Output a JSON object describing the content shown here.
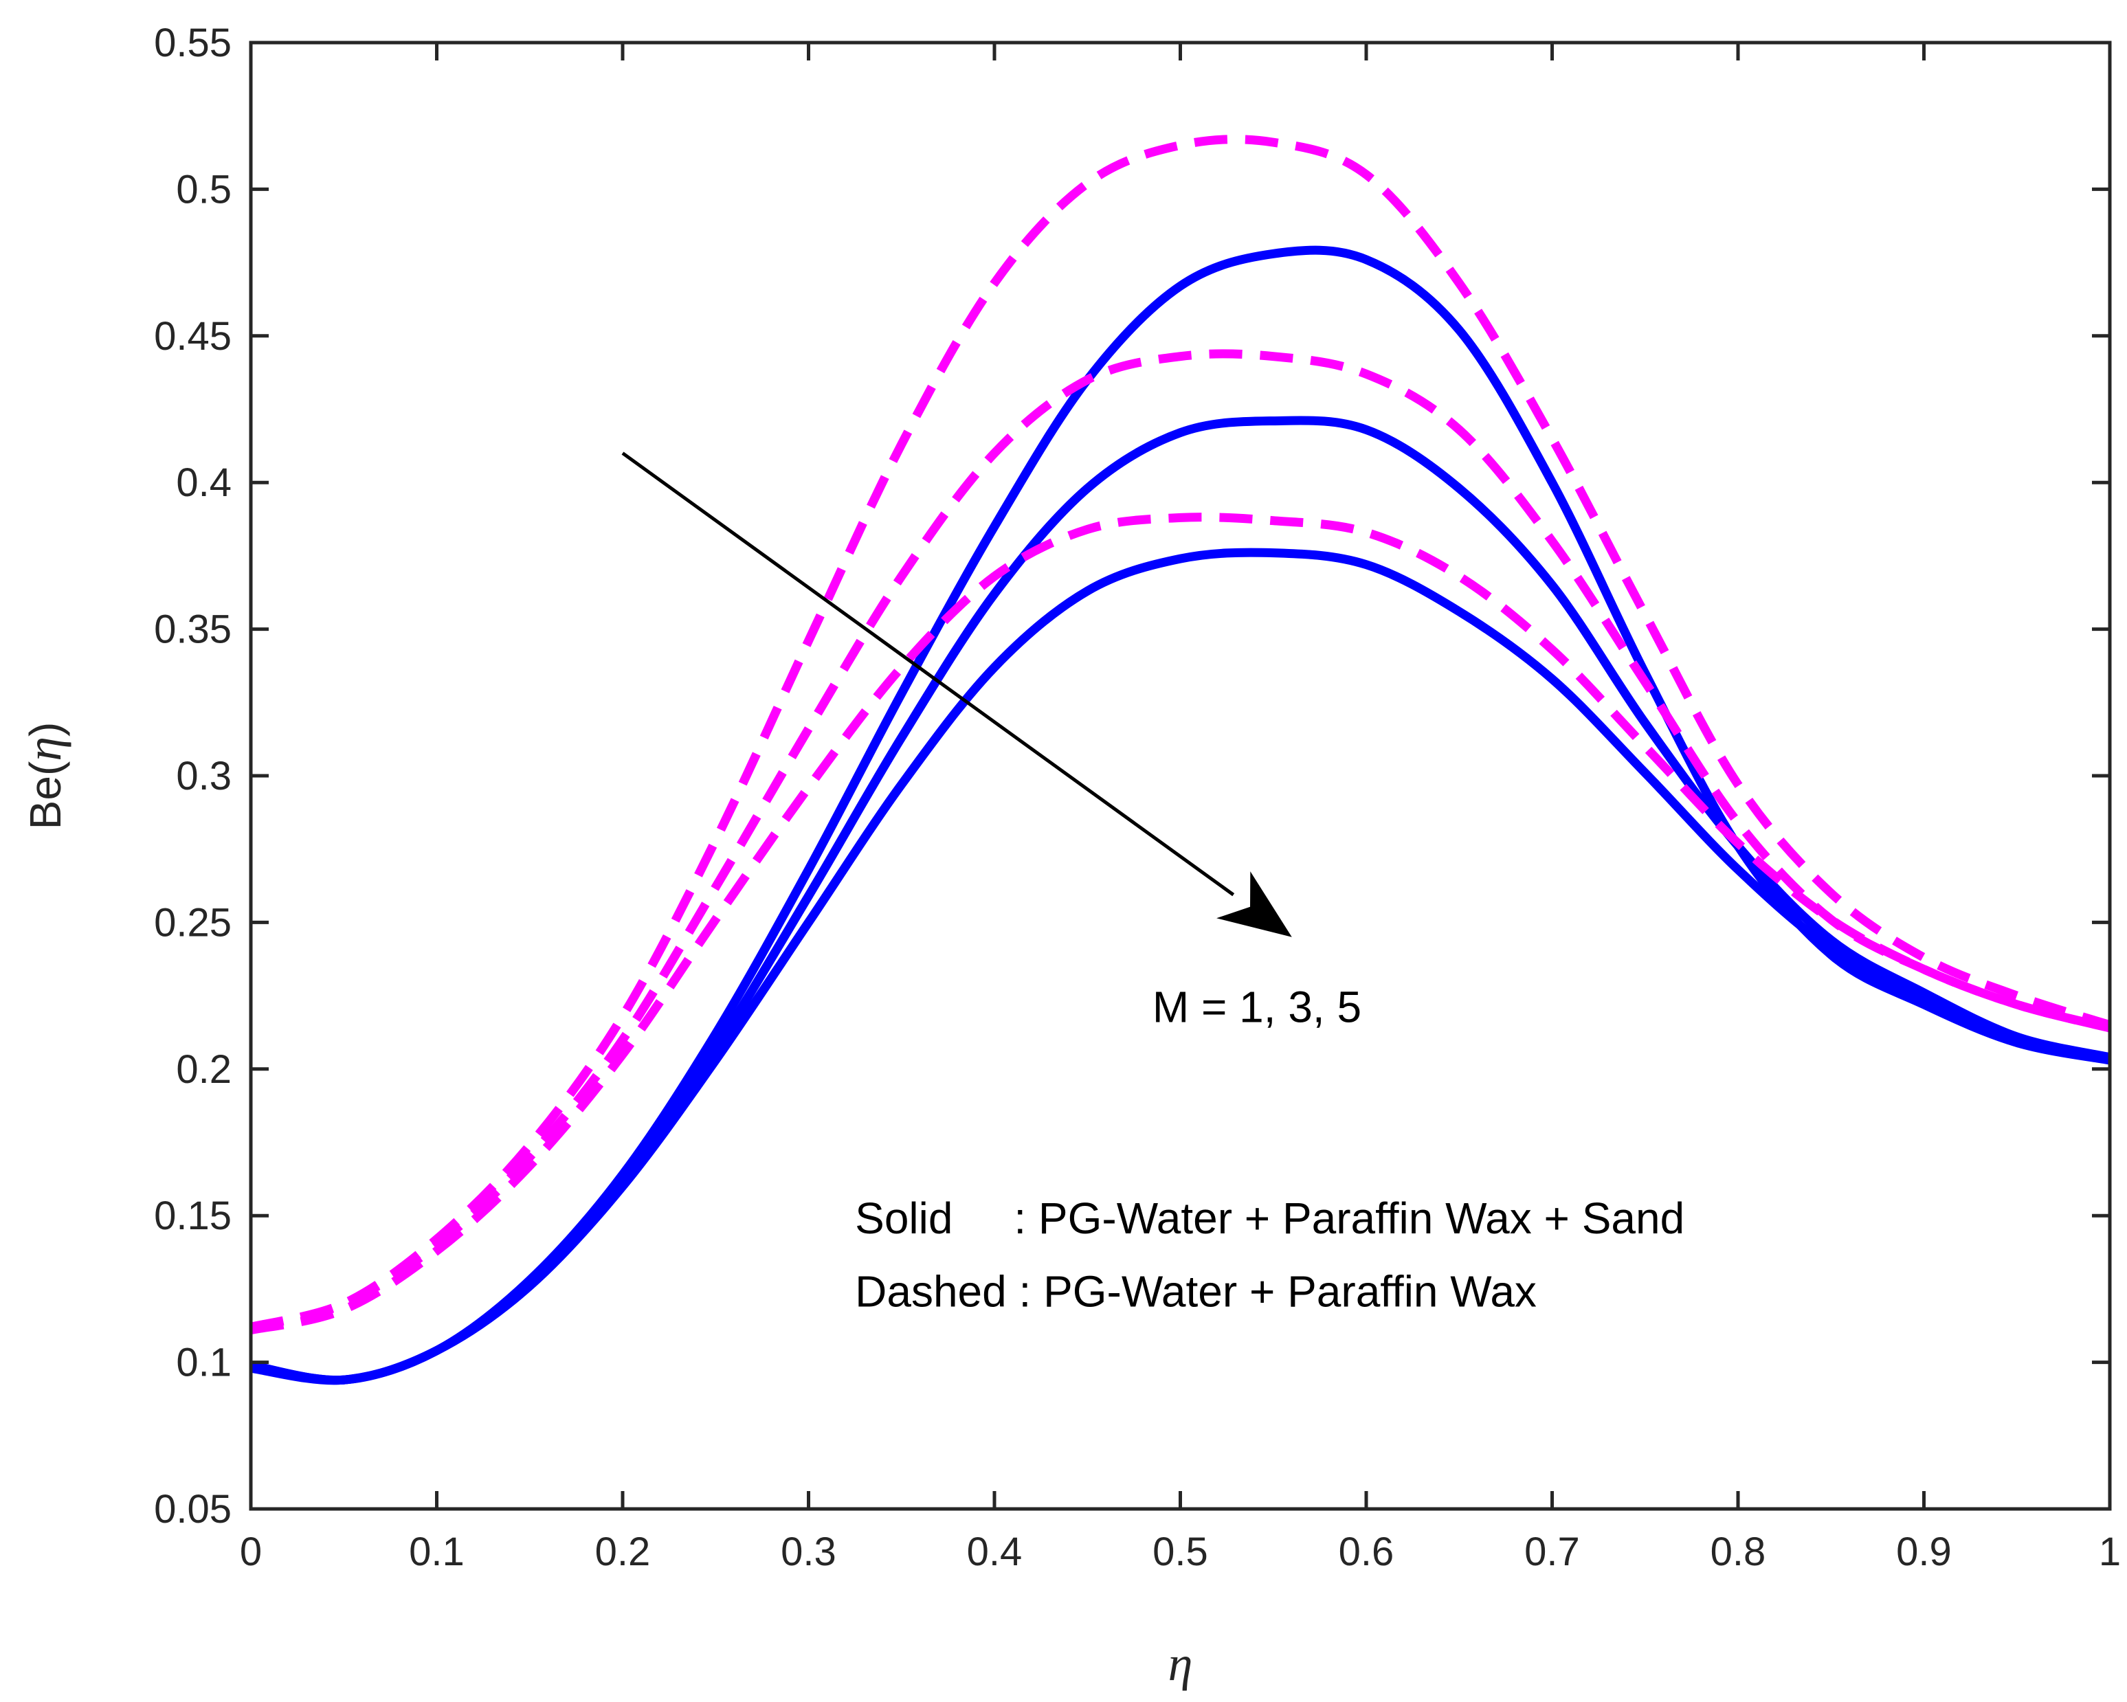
{
  "chart_data": {
    "type": "line",
    "title": "",
    "xlabel": "η",
    "ylabel": {
      "prefix": "Be(",
      "symbol": "η",
      "suffix": ")"
    },
    "xlim": [
      0,
      1
    ],
    "ylim": [
      0.05,
      0.55
    ],
    "xticks": [
      "0",
      "0.1",
      "0.2",
      "0.3",
      "0.4",
      "0.5",
      "0.6",
      "0.7",
      "0.8",
      "0.9",
      "1"
    ],
    "yticks": [
      "0.05",
      "0.1",
      "0.15",
      "0.2",
      "0.25",
      "0.3",
      "0.35",
      "0.4",
      "0.45",
      "0.5",
      "0.55"
    ],
    "x": [
      0,
      0.05,
      0.1,
      0.15,
      0.2,
      0.25,
      0.3,
      0.35,
      0.4,
      0.45,
      0.5,
      0.55,
      0.6,
      0.65,
      0.7,
      0.75,
      0.8,
      0.85,
      0.9,
      0.95,
      1
    ],
    "series": [
      {
        "name": "Solid, M = 1",
        "style": "solid",
        "color": "#0000ff",
        "values": [
          0.098,
          0.094,
          0.104,
          0.128,
          0.164,
          0.212,
          0.268,
          0.328,
          0.385,
          0.435,
          0.467,
          0.478,
          0.476,
          0.452,
          0.4,
          0.335,
          0.276,
          0.239,
          0.222,
          0.209,
          0.203
        ]
      },
      {
        "name": "Solid, M = 3",
        "style": "solid",
        "color": "#0000ff",
        "values": [
          0.099,
          0.094,
          0.104,
          0.127,
          0.162,
          0.207,
          0.259,
          0.313,
          0.362,
          0.398,
          0.417,
          0.421,
          0.418,
          0.398,
          0.365,
          0.318,
          0.276,
          0.244,
          0.226,
          0.211,
          0.204
        ]
      },
      {
        "name": "Solid, M = 5",
        "style": "solid",
        "color": "#0000ff",
        "values": [
          0.099,
          0.094,
          0.104,
          0.126,
          0.16,
          0.203,
          0.25,
          0.297,
          0.337,
          0.363,
          0.374,
          0.376,
          0.372,
          0.356,
          0.333,
          0.301,
          0.268,
          0.241,
          0.224,
          0.21,
          0.203
        ]
      },
      {
        "name": "Dashed, M = 1",
        "style": "dashed",
        "color": "#ff00ff",
        "values": [
          0.112,
          0.12,
          0.142,
          0.174,
          0.218,
          0.278,
          0.346,
          0.413,
          0.468,
          0.502,
          0.515,
          0.516,
          0.505,
          0.468,
          0.415,
          0.355,
          0.297,
          0.26,
          0.238,
          0.225,
          0.215
        ]
      },
      {
        "name": "Dashed, M = 3",
        "style": "dashed",
        "color": "#ff00ff",
        "values": [
          0.112,
          0.12,
          0.14,
          0.17,
          0.21,
          0.262,
          0.316,
          0.368,
          0.41,
          0.435,
          0.443,
          0.443,
          0.437,
          0.418,
          0.38,
          0.332,
          0.284,
          0.251,
          0.234,
          0.222,
          0.214
        ]
      },
      {
        "name": "Dashed, M = 5",
        "style": "dashed",
        "color": "#ff00ff",
        "values": [
          0.111,
          0.118,
          0.138,
          0.167,
          0.205,
          0.251,
          0.296,
          0.337,
          0.368,
          0.384,
          0.388,
          0.387,
          0.383,
          0.368,
          0.343,
          0.31,
          0.277,
          0.251,
          0.234,
          0.222,
          0.214
        ]
      }
    ],
    "annotations": {
      "arrow": {
        "from": [
          0.2,
          0.41
        ],
        "to": [
          0.56,
          0.245
        ],
        "color": "#000000"
      },
      "arrow_label": {
        "text": "M = 1, 3, 5",
        "at": [
          0.485,
          0.216
        ]
      },
      "legend_lines": [
        {
          "text": "Solid     : PG-Water + Paraffin Wax + Sand",
          "at": [
            0.325,
            0.144
          ]
        },
        {
          "text": "Dashed : PG-Water + Paraffin Wax",
          "at": [
            0.325,
            0.119
          ]
        }
      ]
    }
  }
}
